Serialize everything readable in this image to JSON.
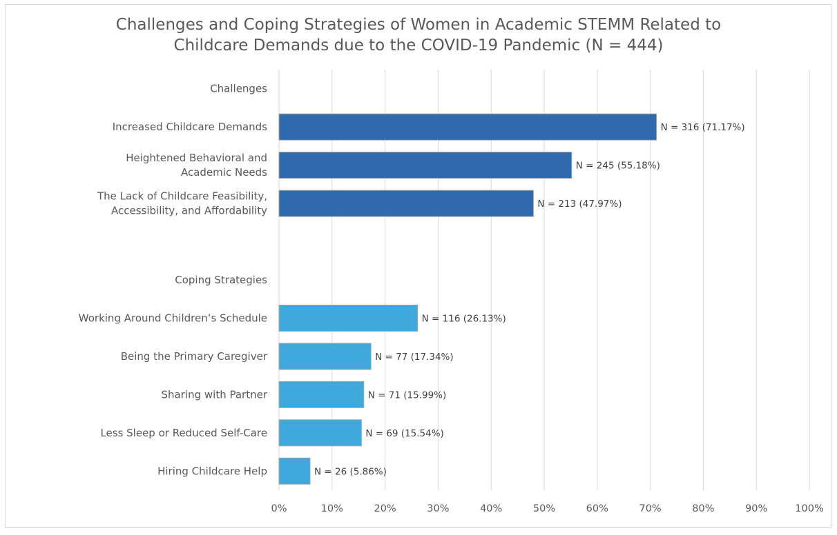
{
  "chart_data": {
    "type": "bar",
    "orientation": "horizontal",
    "title": [
      "Challenges and Coping Strategies of Women in Academic STEMM Related to",
      "Childcare Demands due to the COVID-19 Pandemic (N = 444)"
    ],
    "xlim": [
      0,
      100
    ],
    "x_ticks": [
      "0%",
      "10%",
      "20%",
      "30%",
      "40%",
      "50%",
      "60%",
      "70%",
      "80%",
      "90%",
      "100%"
    ],
    "grid": true,
    "colors": {
      "challenges": "#2e6aac",
      "coping": "#3fa9db",
      "grid": "#d9d9d9",
      "text": "#595959"
    },
    "rows": [
      {
        "label": [
          "Challenges"
        ],
        "value": null,
        "data_label": "",
        "group": "header"
      },
      {
        "label": [
          "Increased Childcare Demands"
        ],
        "value": 71.17,
        "data_label": "N = 316 (71.17%)",
        "group": "challenges"
      },
      {
        "label": [
          "Heightened Behavioral and",
          "Academic Needs"
        ],
        "value": 55.18,
        "data_label": "N = 245 (55.18%)",
        "group": "challenges"
      },
      {
        "label": [
          "The Lack of Childcare Feasibility,",
          "Accessibility, and Affordability"
        ],
        "value": 47.97,
        "data_label": "N = 213 (47.97%)",
        "group": "challenges"
      },
      {
        "label": [
          ""
        ],
        "value": null,
        "data_label": "",
        "group": "blank"
      },
      {
        "label": [
          "Coping Strategies"
        ],
        "value": null,
        "data_label": "",
        "group": "header"
      },
      {
        "label": [
          "Working Around Children’s Schedule"
        ],
        "value": 26.13,
        "data_label": "N = 116 (26.13%)",
        "group": "coping"
      },
      {
        "label": [
          "Being the Primary Caregiver"
        ],
        "value": 17.34,
        "data_label": "N = 77 (17.34%)",
        "group": "coping"
      },
      {
        "label": [
          "Sharing with Partner"
        ],
        "value": 15.99,
        "data_label": "N = 71 (15.99%)",
        "group": "coping"
      },
      {
        "label": [
          "Less Sleep or Reduced Self-Care"
        ],
        "value": 15.54,
        "data_label": "N = 69 (15.54%)",
        "group": "coping"
      },
      {
        "label": [
          "Hiring Childcare Help"
        ],
        "value": 5.86,
        "data_label": "N = 26 (5.86%)",
        "group": "coping"
      }
    ]
  }
}
